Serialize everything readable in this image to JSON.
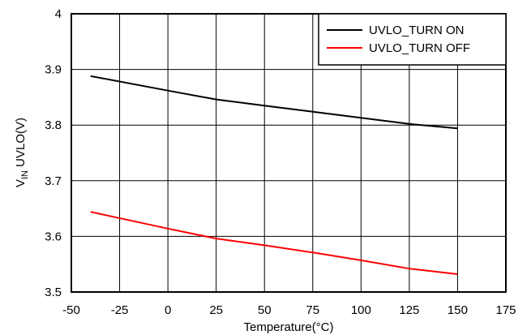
{
  "chart_data": {
    "type": "line",
    "xlabel": "Temperature(°C)",
    "ylabel": {
      "main": "V",
      "sub": "IN",
      "rest": " UVLO(V)"
    },
    "xlim": [
      -50,
      175
    ],
    "ylim": [
      3.5,
      4.0
    ],
    "xticks": [
      "-50",
      "-25",
      "0",
      "25",
      "50",
      "75",
      "100",
      "125",
      "150",
      "175"
    ],
    "yticks": [
      "3.5",
      "3.6",
      "3.7",
      "3.8",
      "3.9",
      "4"
    ],
    "grid": true,
    "legend_position": "top-right",
    "series": [
      {
        "name": "UVLO_TURN ON",
        "color": "#000000",
        "points": [
          [
            -40,
            3.888
          ],
          [
            0,
            3.862
          ],
          [
            25,
            3.846
          ],
          [
            50,
            3.835
          ],
          [
            75,
            3.824
          ],
          [
            100,
            3.813
          ],
          [
            125,
            3.802
          ],
          [
            150,
            3.794
          ]
        ]
      },
      {
        "name": "UVLO_TURN OFF",
        "color": "#ff0000",
        "points": [
          [
            -40,
            3.644
          ],
          [
            0,
            3.614
          ],
          [
            25,
            3.596
          ],
          [
            50,
            3.584
          ],
          [
            75,
            3.571
          ],
          [
            100,
            3.557
          ],
          [
            125,
            3.542
          ],
          [
            150,
            3.532
          ]
        ]
      }
    ]
  }
}
